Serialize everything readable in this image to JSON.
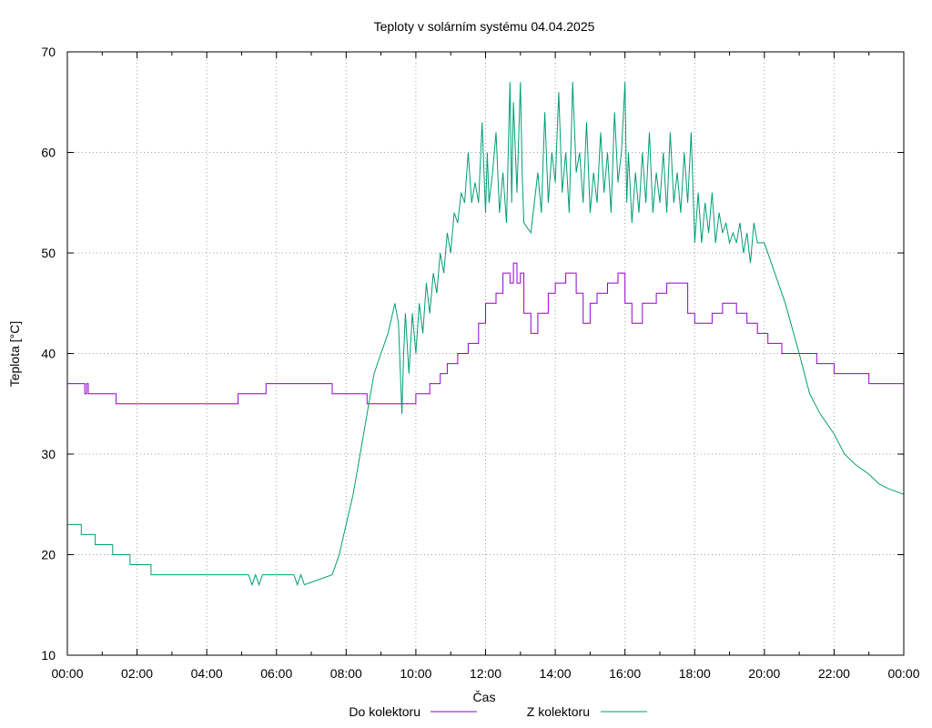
{
  "chart_data": {
    "type": "line",
    "title": "Teploty v solárním systému 04.04.2025",
    "xlabel": "Čas",
    "ylabel": "Teplota [°C]",
    "xlim": [
      0,
      24
    ],
    "ylim": [
      10,
      70
    ],
    "grid": true,
    "legend": "bottom",
    "x_ticks": [
      {
        "value": 0,
        "label": "00:00"
      },
      {
        "value": 2,
        "label": "02:00"
      },
      {
        "value": 4,
        "label": "04:00"
      },
      {
        "value": 6,
        "label": "06:00"
      },
      {
        "value": 8,
        "label": "08:00"
      },
      {
        "value": 10,
        "label": "10:00"
      },
      {
        "value": 12,
        "label": "12:00"
      },
      {
        "value": 14,
        "label": "14:00"
      },
      {
        "value": 16,
        "label": "16:00"
      },
      {
        "value": 18,
        "label": "18:00"
      },
      {
        "value": 20,
        "label": "20:00"
      },
      {
        "value": 22,
        "label": "22:00"
      },
      {
        "value": 24,
        "label": "00:00"
      }
    ],
    "y_ticks": [
      {
        "value": 10,
        "label": "10"
      },
      {
        "value": 20,
        "label": "20"
      },
      {
        "value": 30,
        "label": "30"
      },
      {
        "value": 40,
        "label": "40"
      },
      {
        "value": 50,
        "label": "50"
      },
      {
        "value": 60,
        "label": "60"
      },
      {
        "value": 70,
        "label": "70"
      }
    ],
    "series": [
      {
        "name": "Do kolektoru",
        "color": "#9400d3",
        "x": [
          0,
          0.5,
          0.5,
          0.55,
          0.55,
          0.6,
          0.6,
          1.4,
          1.4,
          4.9,
          4.9,
          5.7,
          5.7,
          7.6,
          7.6,
          8.6,
          8.6,
          9.0,
          9.0,
          10.0,
          10.0,
          10.4,
          10.4,
          10.7,
          10.7,
          10.9,
          10.9,
          11.2,
          11.2,
          11.5,
          11.5,
          11.8,
          11.8,
          12.0,
          12.0,
          12.3,
          12.3,
          12.5,
          12.5,
          12.7,
          12.7,
          12.8,
          12.8,
          12.9,
          12.9,
          13.0,
          13.0,
          13.1,
          13.1,
          13.3,
          13.3,
          13.5,
          13.5,
          13.8,
          13.8,
          14.0,
          14.0,
          14.3,
          14.3,
          14.6,
          14.6,
          14.8,
          14.8,
          15.0,
          15.0,
          15.2,
          15.2,
          15.5,
          15.5,
          15.8,
          15.8,
          16.0,
          16.0,
          16.2,
          16.2,
          16.5,
          16.5,
          16.9,
          16.9,
          17.2,
          17.2,
          17.5,
          17.5,
          17.8,
          17.8,
          18.0,
          18.0,
          18.5,
          18.5,
          18.8,
          18.8,
          19.2,
          19.2,
          19.5,
          19.5,
          19.8,
          19.8,
          20.1,
          20.1,
          20.5,
          20.5,
          21.0,
          21.0,
          21.5,
          21.5,
          22.0,
          22.0,
          22.5,
          22.5,
          23.0,
          23.0,
          23.3,
          23.3,
          24.0
        ],
        "values": [
          37,
          37,
          36,
          36,
          37,
          37,
          36,
          36,
          35,
          35,
          36,
          36,
          37,
          37,
          36,
          36,
          35,
          35,
          35,
          35,
          36,
          36,
          37,
          37,
          38,
          38,
          39,
          39,
          40,
          40,
          41,
          41,
          43,
          43,
          45,
          45,
          46,
          46,
          48,
          48,
          47,
          47,
          49,
          49,
          47,
          47,
          48,
          48,
          44,
          44,
          42,
          42,
          44,
          44,
          46,
          46,
          47,
          47,
          48,
          48,
          46,
          46,
          43,
          43,
          45,
          45,
          46,
          46,
          47,
          47,
          48,
          48,
          45,
          45,
          43,
          43,
          45,
          45,
          46,
          46,
          47,
          47,
          47,
          47,
          44,
          44,
          43,
          43,
          44,
          44,
          45,
          45,
          44,
          44,
          43,
          43,
          42,
          42,
          41,
          41,
          40,
          40,
          40,
          40,
          39,
          39,
          38,
          38,
          38,
          38,
          37,
          37,
          37,
          37
        ]
      },
      {
        "name": "Z kolektoru",
        "color": "#009e73",
        "x": [
          0,
          0.4,
          0.4,
          0.8,
          0.8,
          1.3,
          1.3,
          1.8,
          1.8,
          2.4,
          2.4,
          5.2,
          5.3,
          5.4,
          5.5,
          5.6,
          5.7,
          6.5,
          6.6,
          6.7,
          6.8,
          7.6,
          7.8,
          8.0,
          8.2,
          8.4,
          8.6,
          8.8,
          9.0,
          9.2,
          9.4,
          9.5,
          9.6,
          9.65,
          9.7,
          9.8,
          9.9,
          10.0,
          10.1,
          10.2,
          10.3,
          10.4,
          10.5,
          10.6,
          10.7,
          10.8,
          10.9,
          11.0,
          11.1,
          11.2,
          11.3,
          11.4,
          11.5,
          11.6,
          11.7,
          11.8,
          11.9,
          12.0,
          12.05,
          12.1,
          12.2,
          12.3,
          12.4,
          12.5,
          12.6,
          12.7,
          12.75,
          12.8,
          12.9,
          13.0,
          13.05,
          13.1,
          13.3,
          13.5,
          13.6,
          13.7,
          13.8,
          13.9,
          14.0,
          14.1,
          14.2,
          14.3,
          14.4,
          14.5,
          14.6,
          14.7,
          14.8,
          14.9,
          15.0,
          15.1,
          15.2,
          15.3,
          15.4,
          15.5,
          15.6,
          15.7,
          15.8,
          15.9,
          16.0,
          16.05,
          16.1,
          16.2,
          16.3,
          16.4,
          16.5,
          16.6,
          16.7,
          16.8,
          16.9,
          17.0,
          17.1,
          17.2,
          17.3,
          17.4,
          17.5,
          17.6,
          17.7,
          17.8,
          17.9,
          18.0,
          18.1,
          18.2,
          18.3,
          18.4,
          18.5,
          18.6,
          18.7,
          18.8,
          18.9,
          19.0,
          19.1,
          19.2,
          19.3,
          19.4,
          19.5,
          19.6,
          19.7,
          19.8,
          19.9,
          20.0,
          20.3,
          20.6,
          21.0,
          21.3,
          21.6,
          22.0,
          22.3,
          22.6,
          23.0,
          23.3,
          23.6,
          24.0
        ],
        "values": [
          23,
          23,
          22,
          22,
          21,
          21,
          20,
          20,
          19,
          19,
          18,
          18,
          17,
          18,
          17,
          18,
          18,
          18,
          17,
          18,
          17,
          18,
          20,
          23,
          26,
          30,
          34,
          38,
          40,
          42,
          45,
          43,
          34,
          40,
          44,
          38,
          44,
          40,
          45,
          42,
          47,
          44,
          48,
          46,
          50,
          48,
          52,
          50,
          54,
          53,
          56,
          55,
          60,
          55,
          57,
          55,
          63,
          54,
          60,
          55,
          58,
          62,
          54,
          58,
          53,
          67,
          55,
          65,
          56,
          67,
          58,
          53,
          52,
          58,
          54,
          64,
          55,
          60,
          57,
          66,
          56,
          60,
          54,
          67,
          58,
          60,
          55,
          63,
          54,
          58,
          55,
          62,
          56,
          60,
          54,
          64,
          57,
          60,
          67,
          55,
          60,
          53,
          58,
          54,
          60,
          55,
          62,
          54,
          58,
          55,
          60,
          54,
          62,
          55,
          58,
          54,
          60,
          55,
          62,
          51,
          56,
          51,
          55,
          52,
          56,
          51,
          54,
          52,
          53,
          51,
          52,
          51,
          53,
          50,
          52,
          49,
          53,
          51,
          51,
          51,
          48,
          45,
          40,
          36,
          34,
          32,
          30,
          29,
          28,
          27,
          26.5,
          26
        ]
      }
    ]
  }
}
